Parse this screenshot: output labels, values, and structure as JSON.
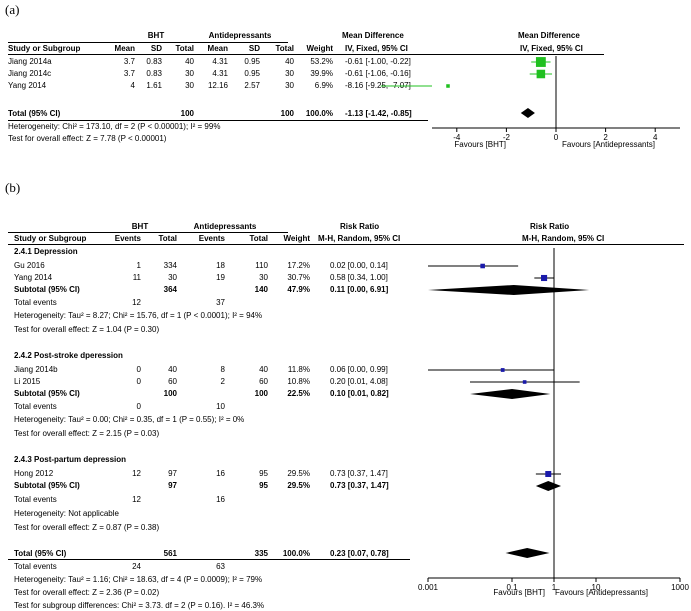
{
  "panel_a": {
    "label": "(a)",
    "header": {
      "group1": "BHT",
      "group2": "Antidepressants",
      "md_col": "Mean Difference",
      "md_method": "IV, Fixed, 95% CI",
      "plot_title": "Mean Difference",
      "plot_method": "IV, Fixed, 95% CI",
      "study": "Study or Subgroup",
      "mean1": "Mean",
      "sd1": "SD",
      "total1": "Total",
      "mean2": "Mean",
      "sd2": "SD",
      "total2": "Total",
      "weight": "Weight"
    },
    "rows": [
      {
        "study": "Jiang 2014a",
        "mean1": "3.7",
        "sd1": "0.83",
        "total1": "40",
        "mean2": "4.31",
        "sd2": "0.95",
        "total2": "40",
        "weight": "53.2%",
        "ci_text": "-0.61 [-1.00, -0.22]"
      },
      {
        "study": "Jiang 2014c",
        "mean1": "3.7",
        "sd1": "0.83",
        "total1": "30",
        "mean2": "4.31",
        "sd2": "0.95",
        "total2": "30",
        "weight": "39.9%",
        "ci_text": "-0.61 [-1.06, -0.16]"
      },
      {
        "study": "Yang 2014",
        "mean1": "4",
        "sd1": "1.61",
        "total1": "30",
        "mean2": "12.16",
        "sd2": "2.57",
        "total2": "30",
        "weight": "6.9%",
        "ci_text": "-8.16 [-9.25, -7.07]"
      }
    ],
    "total": {
      "label": "Total (95% CI)",
      "total1": "100",
      "total2": "100",
      "weight": "100.0%",
      "ci_text": "-1.13 [-1.42, -0.85]"
    },
    "heterogeneity": "Heterogeneity: Chi² = 173.10, df = 2 (P < 0.00001); I² = 99%",
    "overall": "Test for overall effect: Z = 7.78 (P < 0.00001)",
    "axis": {
      "ticks": [
        "-4",
        "-2",
        "0",
        "2",
        "4"
      ],
      "favours_left": "Favours [BHT]",
      "favours_right": "Favours [Antidepressants]"
    }
  },
  "panel_b": {
    "label": "(b)",
    "header": {
      "group1": "BHT",
      "group2": "Antidepressants",
      "rr_col": "Risk Ratio",
      "rr_method": "M-H, Random, 95% CI",
      "plot_title": "Risk Ratio",
      "plot_method": "M-H, Random, 95% CI",
      "study": "Study or Subgroup",
      "events1": "Events",
      "total1": "Total",
      "events2": "Events",
      "total2": "Total",
      "weight": "Weight"
    },
    "subgroups": [
      {
        "title": "2.4.1 Depression",
        "rows": [
          {
            "study": "Gu 2016",
            "events1": "1",
            "total1": "334",
            "events2": "18",
            "total2": "110",
            "weight": "17.2%",
            "ci_text": "0.02 [0.00, 0.14]"
          },
          {
            "study": "Yang 2014",
            "events1": "11",
            "total1": "30",
            "events2": "19",
            "total2": "30",
            "weight": "30.7%",
            "ci_text": "0.58 [0.34, 1.00]"
          }
        ],
        "subtotal": {
          "label": "Subtotal (95% CI)",
          "total1": "364",
          "total2": "140",
          "weight": "47.9%",
          "ci_text": "0.11 [0.00, 6.91]"
        },
        "events": {
          "label": "Total events",
          "e1": "12",
          "e2": "37"
        },
        "heterogeneity": "Heterogeneity: Tau² = 8.27; Chi² = 15.76, df = 1 (P < 0.0001); I² = 94%",
        "overall": "Test for overall effect: Z = 1.04 (P = 0.30)"
      },
      {
        "title": "2.4.2 Post-stroke dperession",
        "rows": [
          {
            "study": "Jiang 2014b",
            "events1": "0",
            "total1": "40",
            "events2": "8",
            "total2": "40",
            "weight": "11.8%",
            "ci_text": "0.06 [0.00, 0.99]"
          },
          {
            "study": "Li 2015",
            "events1": "0",
            "total1": "60",
            "events2": "2",
            "total2": "60",
            "weight": "10.8%",
            "ci_text": "0.20 [0.01, 4.08]"
          }
        ],
        "subtotal": {
          "label": "Subtotal (95% CI)",
          "total1": "100",
          "total2": "100",
          "weight": "22.5%",
          "ci_text": "0.10 [0.01, 0.82]"
        },
        "events": {
          "label": "Total events",
          "e1": "0",
          "e2": "10"
        },
        "heterogeneity": "Heterogeneity: Tau² = 0.00; Chi² = 0.35, df = 1 (P = 0.55); I² = 0%",
        "overall": "Test for overall effect: Z = 2.15 (P = 0.03)"
      },
      {
        "title": "2.4.3 Post-partum depression",
        "rows": [
          {
            "study": "Hong 2012",
            "events1": "12",
            "total1": "97",
            "events2": "16",
            "total2": "95",
            "weight": "29.5%",
            "ci_text": "0.73 [0.37, 1.47]"
          }
        ],
        "subtotal": {
          "label": "Subtotal (95% CI)",
          "total1": "97",
          "total2": "95",
          "weight": "29.5%",
          "ci_text": "0.73 [0.37, 1.47]"
        },
        "events": {
          "label": "Total events",
          "e1": "12",
          "e2": "16"
        },
        "heterogeneity": "Heterogeneity: Not applicable",
        "overall": "Test for overall effect: Z = 0.87 (P = 0.38)"
      }
    ],
    "total": {
      "label": "Total (95% CI)",
      "total1": "561",
      "total2": "335",
      "weight": "100.0%",
      "ci_text": "0.23 [0.07, 0.78]"
    },
    "total_events": {
      "label": "Total events",
      "e1": "24",
      "e2": "63"
    },
    "heterogeneity": "Heterogeneity: Tau² = 1.16; Chi² = 18.63, df = 4 (P = 0.0009); I² = 79%",
    "overall": "Test for overall effect: Z = 2.36 (P = 0.02)",
    "subgroup_diff": "Test for subgroup differences: Chi² = 3.73. df = 2 (P = 0.16). I² = 46.3%",
    "axis": {
      "ticks": [
        "0.001",
        "0.1",
        "1",
        "10",
        "1000"
      ],
      "favours_left": "Favours [BHT]",
      "favours_right": "Favours [Antidepressants]"
    }
  },
  "colors": {
    "square_a": "#20c020",
    "square_b": "#1a1aaa",
    "line": "#000000"
  },
  "chart_data": [
    {
      "type": "forest",
      "measure": "Mean Difference",
      "scale": "linear",
      "xlim": [
        -5,
        5
      ],
      "ticks": [
        -4,
        -2,
        0,
        2,
        4
      ],
      "studies": [
        {
          "name": "Jiang 2014a",
          "est": -0.61,
          "lo": -1.0,
          "hi": -0.22,
          "weight": 53.2
        },
        {
          "name": "Jiang 2014c",
          "est": -0.61,
          "lo": -1.06,
          "hi": -0.16,
          "weight": 39.9
        },
        {
          "name": "Yang 2014",
          "est": -8.16,
          "lo": -9.25,
          "hi": -7.07,
          "weight": 6.9
        }
      ],
      "pooled": {
        "est": -1.13,
        "lo": -1.42,
        "hi": -0.85
      }
    },
    {
      "type": "forest",
      "measure": "Risk Ratio",
      "scale": "log",
      "xlim": [
        0.001,
        1000
      ],
      "ticks": [
        0.001,
        0.1,
        1,
        10,
        1000
      ],
      "studies": [
        {
          "name": "Gu 2016",
          "subgroup": "2.4.1 Depression",
          "est": 0.02,
          "lo": 0.0,
          "hi": 0.14,
          "weight": 17.2
        },
        {
          "name": "Yang 2014",
          "subgroup": "2.4.1 Depression",
          "est": 0.58,
          "lo": 0.34,
          "hi": 1.0,
          "weight": 30.7
        },
        {
          "name": "Jiang 2014b",
          "subgroup": "2.4.2 Post-stroke dperession",
          "est": 0.06,
          "lo": 0.0,
          "hi": 0.99,
          "weight": 11.8
        },
        {
          "name": "Li 2015",
          "subgroup": "2.4.2 Post-stroke dperession",
          "est": 0.2,
          "lo": 0.01,
          "hi": 4.08,
          "weight": 10.8
        },
        {
          "name": "Hong 2012",
          "subgroup": "2.4.3 Post-partum depression",
          "est": 0.73,
          "lo": 0.37,
          "hi": 1.47,
          "weight": 29.5
        }
      ],
      "subtotals": [
        {
          "subgroup": "2.4.1 Depression",
          "est": 0.11,
          "lo": 0.0,
          "hi": 6.91
        },
        {
          "subgroup": "2.4.2 Post-stroke dperession",
          "est": 0.1,
          "lo": 0.01,
          "hi": 0.82
        },
        {
          "subgroup": "2.4.3 Post-partum depression",
          "est": 0.73,
          "lo": 0.37,
          "hi": 1.47
        }
      ],
      "pooled": {
        "est": 0.23,
        "lo": 0.07,
        "hi": 0.78
      }
    }
  ]
}
